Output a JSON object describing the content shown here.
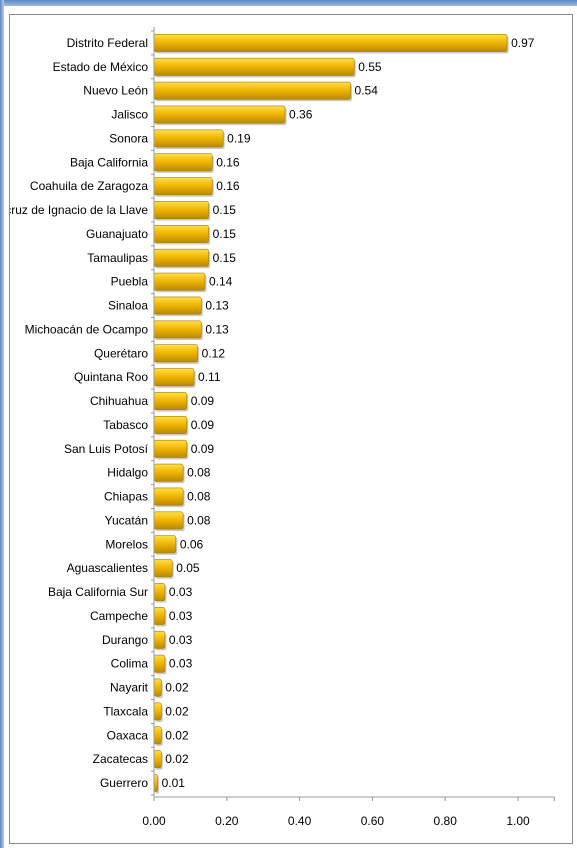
{
  "chart_data": {
    "type": "bar",
    "orientation": "horizontal",
    "categories": [
      "Distrito Federal",
      "Estado de México",
      "Nuevo León",
      "Jalisco",
      "Sonora",
      "Baja California",
      "Coahuila de Zaragoza",
      "Veracruz de Ignacio de la Llave",
      "Guanajuato",
      "Tamaulipas",
      "Puebla",
      "Sinaloa",
      "Michoacán de Ocampo",
      "Querétaro",
      "Quintana Roo",
      "Chihuahua",
      "Tabasco",
      "San Luis Potosí",
      "Hidalgo",
      "Chiapas",
      "Yucatán",
      "Morelos",
      "Aguascalientes",
      "Baja California Sur",
      "Campeche",
      "Durango",
      "Colima",
      "Nayarit",
      "Tlaxcala",
      "Oaxaca",
      "Zacatecas",
      "Guerrero"
    ],
    "values": [
      0.97,
      0.55,
      0.54,
      0.36,
      0.19,
      0.16,
      0.16,
      0.15,
      0.15,
      0.15,
      0.14,
      0.13,
      0.13,
      0.12,
      0.11,
      0.09,
      0.09,
      0.09,
      0.08,
      0.08,
      0.08,
      0.06,
      0.05,
      0.03,
      0.03,
      0.03,
      0.03,
      0.02,
      0.02,
      0.02,
      0.02,
      0.01
    ],
    "value_labels": [
      "0.97",
      "0.55",
      "0.54",
      "0.36",
      "0.19",
      "0.16",
      "0.16",
      "0.15",
      "0.15",
      "0.15",
      "0.14",
      "0.13",
      "0.13",
      "0.12",
      "0.11",
      "0.09",
      "0.09",
      "0.09",
      "0.08",
      "0.08",
      "0.08",
      "0.06",
      "0.05",
      "0.03",
      "0.03",
      "0.03",
      "0.03",
      "0.02",
      "0.02",
      "0.02",
      "0.02",
      "0.01"
    ],
    "xlim": [
      0,
      1.1
    ],
    "x_ticks": [
      "0.00",
      "0.20",
      "0.40",
      "0.60",
      "0.80",
      "1.00"
    ],
    "x_tick_values": [
      0,
      0.2,
      0.4,
      0.6,
      0.8,
      1.0
    ],
    "title": "",
    "xlabel": "",
    "ylabel": "",
    "grid": false,
    "legend": "none",
    "colors": {
      "bar_top": "#fde04a",
      "bar_mid": "#f2b705",
      "bar_bottom": "#b88a00",
      "axis": "#9a9a9a"
    }
  }
}
